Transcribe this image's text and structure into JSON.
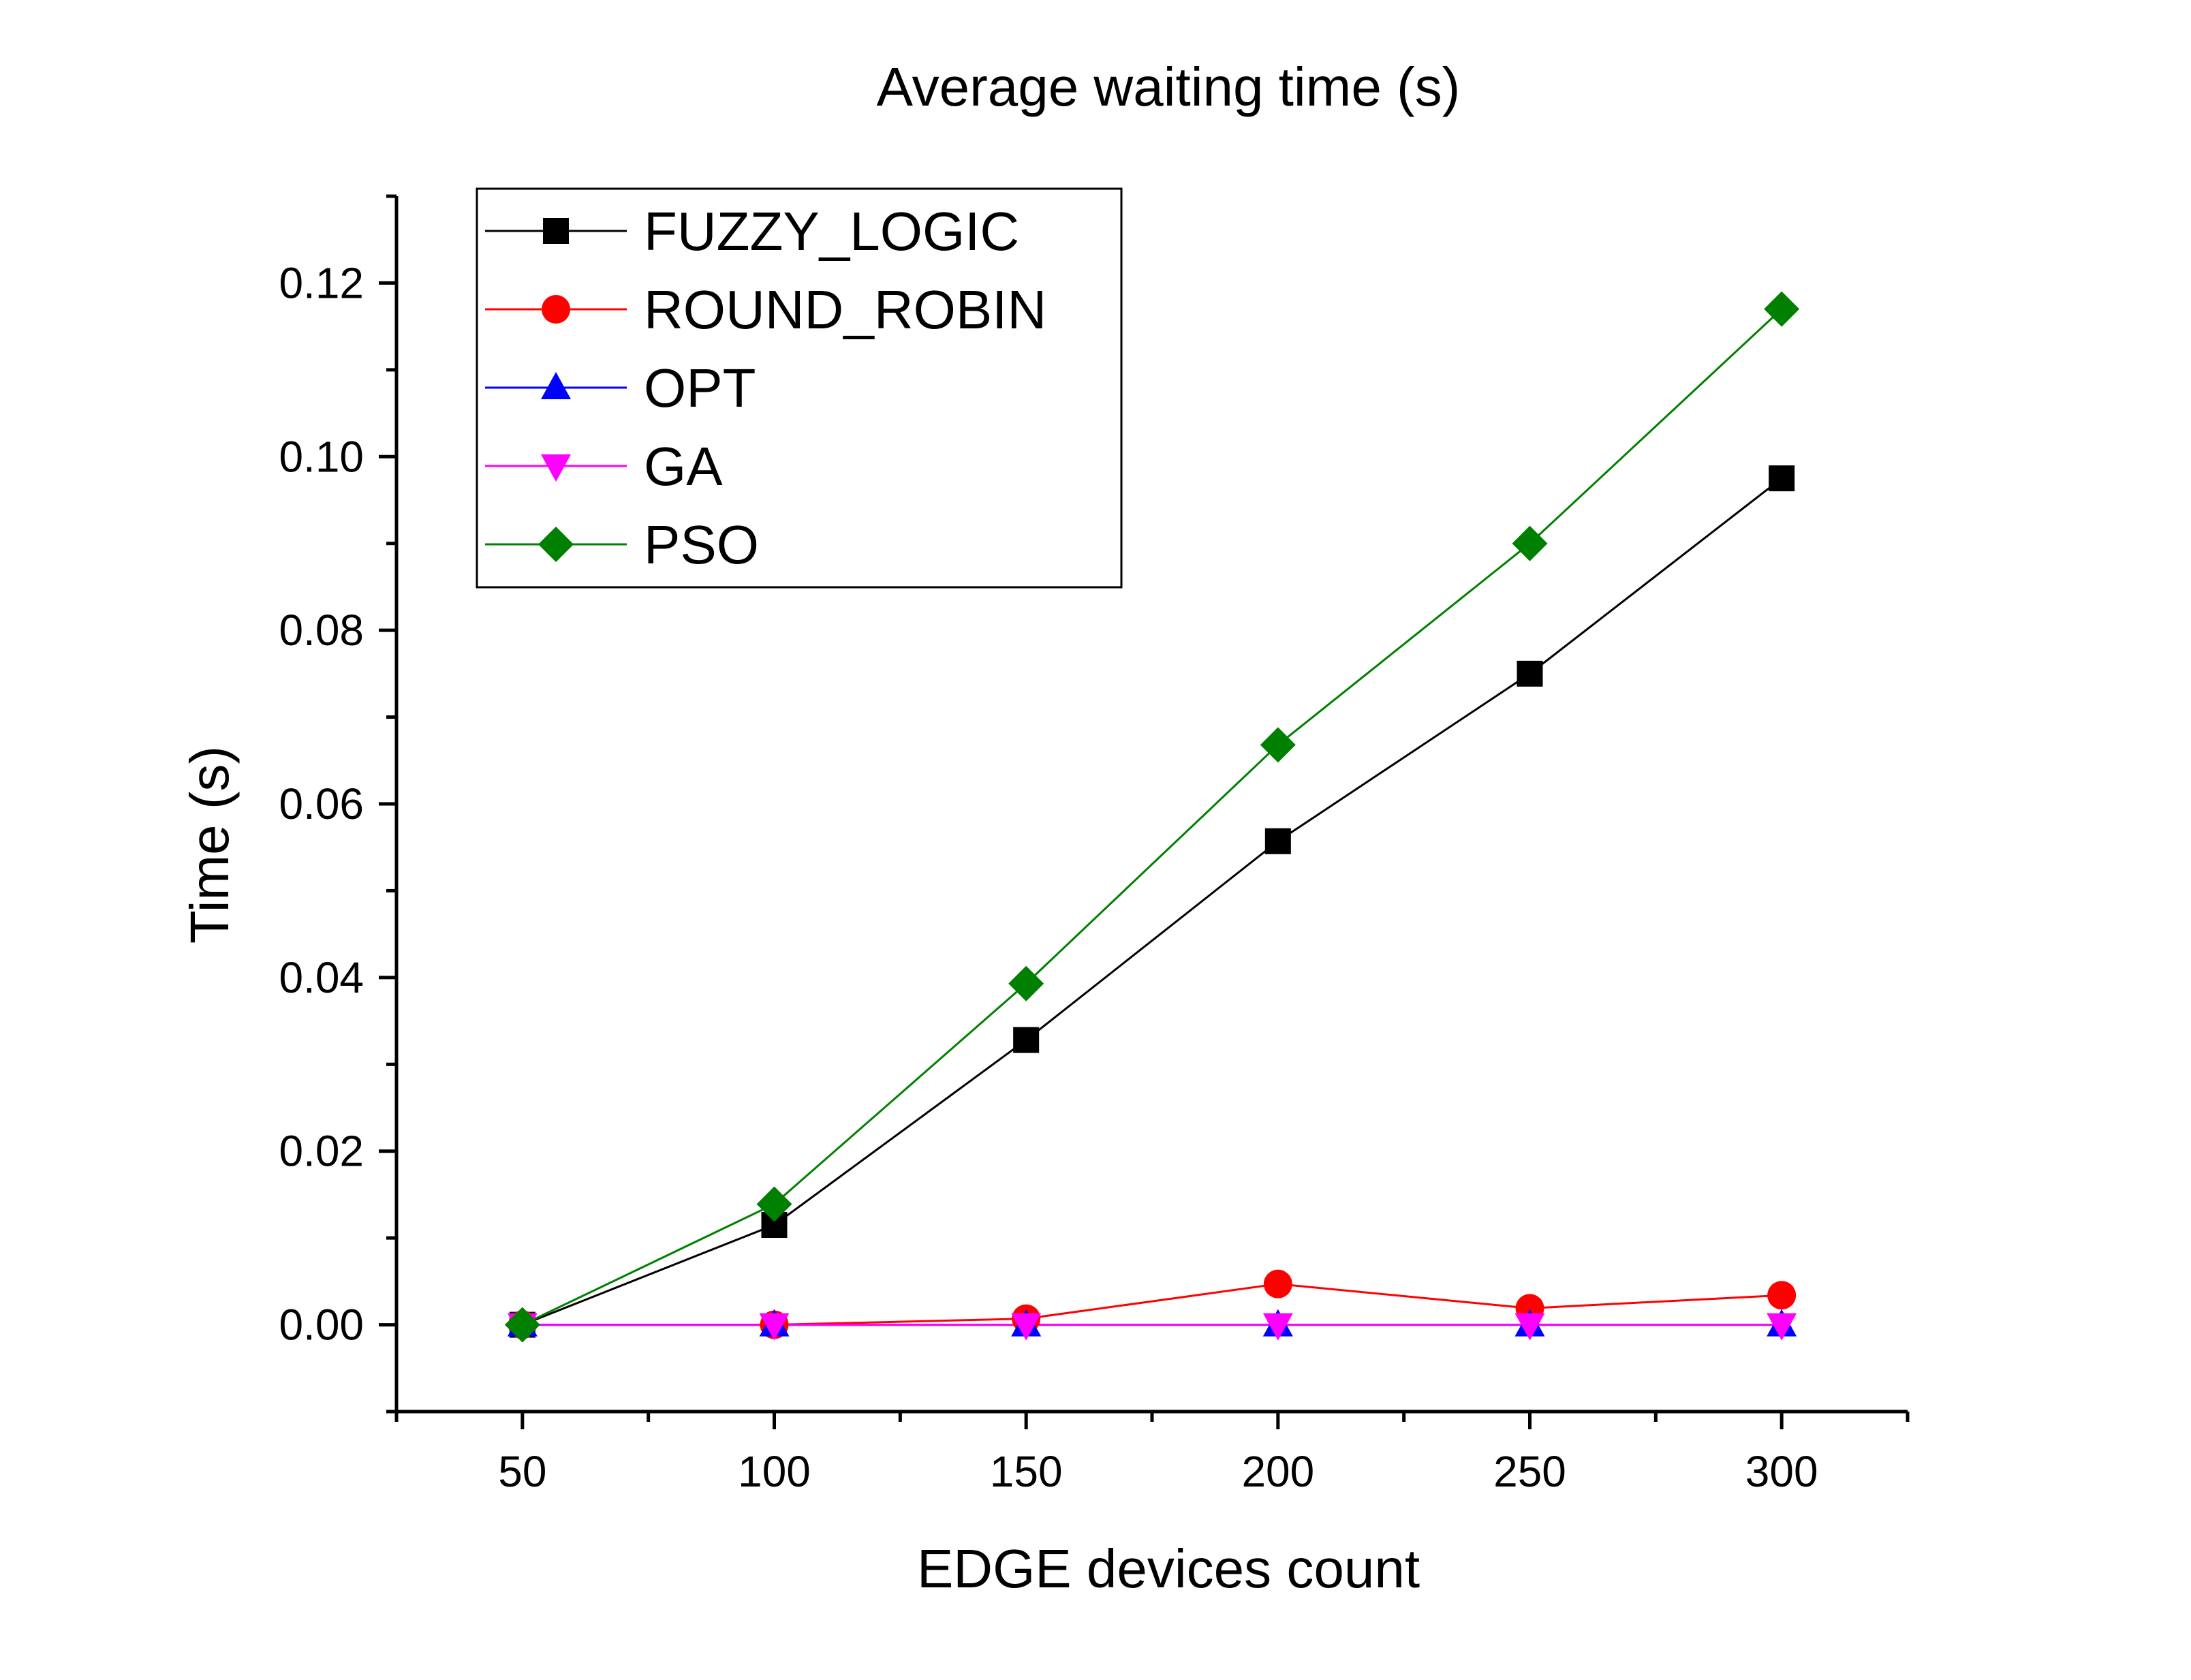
{
  "chart_data": {
    "type": "line",
    "title": "Average waiting time (s)",
    "xlabel": "EDGE devices count",
    "ylabel": "Time (s)",
    "x": [
      50,
      100,
      150,
      200,
      250,
      300
    ],
    "xlim": [
      25,
      325
    ],
    "ylim": [
      -0.01,
      0.13
    ],
    "xticks": [
      50,
      100,
      150,
      200,
      250,
      300
    ],
    "xtick_labels": [
      "50",
      "100",
      "150",
      "200",
      "250",
      "300"
    ],
    "yticks": [
      0.0,
      0.02,
      0.04,
      0.06,
      0.08,
      0.1,
      0.12
    ],
    "ytick_labels": [
      "0.00",
      "0.02",
      "0.04",
      "0.06",
      "0.08",
      "0.10",
      "0.12"
    ],
    "grid": false,
    "legend_position": "top-left",
    "series": [
      {
        "name": "FUZZY_LOGIC",
        "color": "#000000",
        "marker": "square",
        "values": [
          0.0,
          0.0115,
          0.0328,
          0.0557,
          0.075,
          0.0975
        ]
      },
      {
        "name": "ROUND_ROBIN",
        "color": "#ff0000",
        "marker": "circle",
        "values": [
          0.0,
          0.0,
          0.0007,
          0.0047,
          0.0019,
          0.0034
        ]
      },
      {
        "name": "OPT",
        "color": "#0000ff",
        "marker": "triangle-up",
        "values": [
          0.0,
          0.0,
          0.0,
          0.0,
          0.0,
          0.0
        ]
      },
      {
        "name": "GA",
        "color": "#ff00ff",
        "marker": "triangle-down",
        "values": [
          0.0,
          0.0,
          0.0,
          0.0,
          0.0,
          0.0
        ]
      },
      {
        "name": "PSO",
        "color": "#008000",
        "marker": "diamond",
        "values": [
          0.0,
          0.0139,
          0.0393,
          0.0668,
          0.09,
          0.117
        ]
      }
    ]
  }
}
